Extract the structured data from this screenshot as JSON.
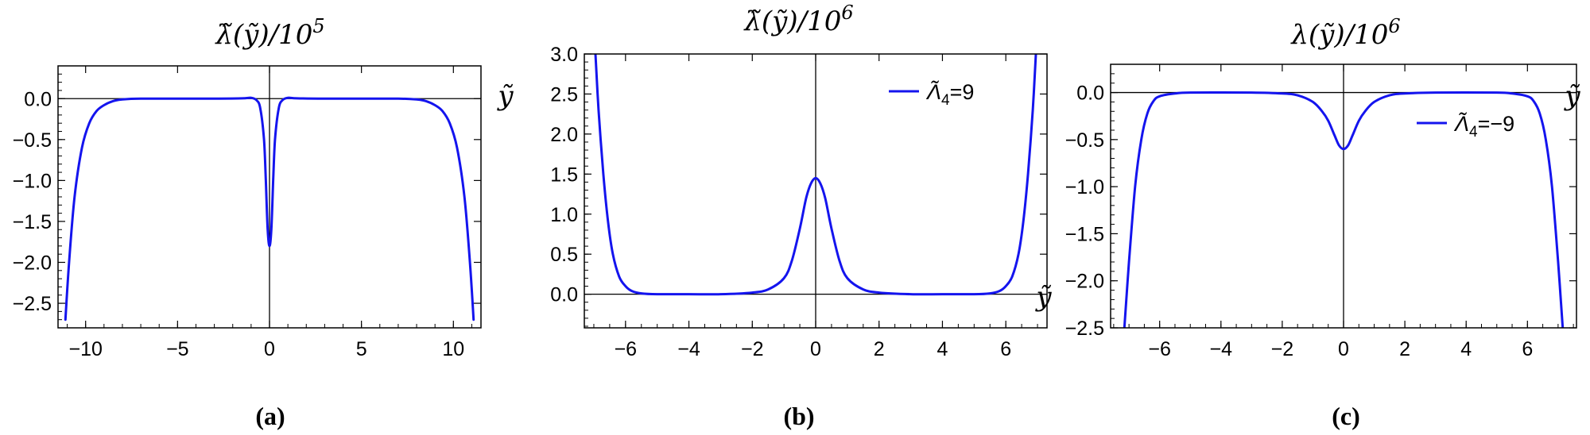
{
  "colors": {
    "curve": "#1414ee",
    "axis": "#000000"
  },
  "chart_data": [
    {
      "panel": "(a)",
      "type": "line",
      "title": "λ̃(ỹ)/10⁵",
      "title_parts": {
        "main": "λ̃(ỹ)/10",
        "sup": "5"
      },
      "xlabel": "",
      "ylabel": "",
      "axis_label": "ỹ",
      "xlim": [
        -11.5,
        11.5
      ],
      "ylim": [
        -2.8,
        0.4
      ],
      "xticks": [
        -10,
        -5,
        0,
        5,
        10
      ],
      "xtick_labels": [
        "−10",
        "−5",
        "0",
        "5",
        "10"
      ],
      "yticks": [
        0,
        -0.5,
        -1,
        -1.5,
        -2,
        -2.5
      ],
      "ytick_labels": [
        "0.0",
        "−0.5",
        "−1.0",
        "−1.5",
        "−2.0",
        "−2.5"
      ],
      "legend": "",
      "series": [
        {
          "x": [
            -11.1,
            -10.9,
            -10.6,
            -10.2,
            -9.8,
            -9.4,
            -9.0,
            -8.5,
            -8.0,
            -7.0,
            -5.0,
            -3.0,
            -1.5,
            -1.0,
            -0.7,
            -0.5,
            -0.3,
            -0.2,
            -0.1,
            0,
            0.1,
            0.2,
            0.3,
            0.5,
            0.7,
            1.0,
            1.5,
            3.0,
            5.0,
            7.0,
            8.0,
            8.5,
            9.0,
            9.4,
            9.8,
            10.2,
            10.6,
            10.9,
            11.1
          ],
          "y": [
            -2.7,
            -2.0,
            -1.2,
            -0.6,
            -0.3,
            -0.15,
            -0.08,
            -0.03,
            -0.01,
            0.0,
            0.0,
            0.0,
            0.003,
            0.01,
            -0.02,
            -0.12,
            -0.5,
            -1.0,
            -1.6,
            -1.8,
            -1.6,
            -1.0,
            -0.5,
            -0.12,
            -0.02,
            0.01,
            0.003,
            0.0,
            0.0,
            0.0,
            -0.01,
            -0.03,
            -0.08,
            -0.15,
            -0.3,
            -0.6,
            -1.2,
            -2.0,
            -2.7
          ]
        }
      ]
    },
    {
      "panel": "(b)",
      "type": "line",
      "title": "λ̃(ỹ)/10⁶",
      "title_parts": {
        "main": "λ̃(ỹ)/10",
        "sup": "6"
      },
      "xlabel": "",
      "ylabel": "",
      "axis_label": "ỹ",
      "xlim": [
        -7.3,
        7.3
      ],
      "ylim": [
        -0.42,
        3.0
      ],
      "xticks": [
        -6,
        -4,
        -2,
        0,
        2,
        4,
        6
      ],
      "xtick_labels": [
        "−6",
        "−4",
        "−2",
        "0",
        "2",
        "4",
        "6"
      ],
      "yticks": [
        0,
        0.5,
        1,
        1.5,
        2,
        2.5,
        3
      ],
      "ytick_labels": [
        "0.0",
        "0.5",
        "1.0",
        "1.5",
        "2.0",
        "2.5",
        "3.0"
      ],
      "legend": "Λ̃₄=9",
      "legend_parts": {
        "main": "Λ̃",
        "sub": "4",
        "rest": "=9"
      },
      "series": [
        {
          "name": "Λ̃₄=9",
          "x": [
            -6.95,
            -6.85,
            -6.7,
            -6.55,
            -6.4,
            -6.2,
            -6.0,
            -5.8,
            -5.5,
            -5.0,
            -4.0,
            -3.0,
            -2.0,
            -1.5,
            -1.0,
            -0.75,
            -0.5,
            -0.3,
            -0.15,
            0,
            0.15,
            0.3,
            0.5,
            0.75,
            1.0,
            1.5,
            2.0,
            3.0,
            4.0,
            5.0,
            5.5,
            5.8,
            6.0,
            6.2,
            6.4,
            6.55,
            6.7,
            6.85,
            6.95
          ],
          "y": [
            3.0,
            2.3,
            1.5,
            0.9,
            0.5,
            0.22,
            0.1,
            0.04,
            0.01,
            0.0,
            0.0,
            0.0,
            0.02,
            0.06,
            0.2,
            0.42,
            0.82,
            1.2,
            1.38,
            1.45,
            1.38,
            1.2,
            0.82,
            0.42,
            0.2,
            0.06,
            0.02,
            0.0,
            0.0,
            0.0,
            0.01,
            0.04,
            0.1,
            0.22,
            0.5,
            0.9,
            1.5,
            2.3,
            3.0
          ]
        }
      ]
    },
    {
      "panel": "(c)",
      "type": "line",
      "title": "λ(ỹ)/10⁶",
      "title_parts": {
        "main": "λ(ỹ)/10",
        "sup": "6"
      },
      "xlabel": "",
      "ylabel": "",
      "axis_label": "ỹ",
      "xlim": [
        -7.6,
        7.6
      ],
      "ylim": [
        -2.5,
        0.3
      ],
      "xticks": [
        -6,
        -4,
        -2,
        0,
        2,
        4,
        6
      ],
      "xtick_labels": [
        "−6",
        "−4",
        "−2",
        "0",
        "2",
        "4",
        "6"
      ],
      "yticks": [
        0,
        -0.5,
        -1,
        -1.5,
        -2,
        -2.5
      ],
      "ytick_labels": [
        "0.0",
        "−0.5",
        "−1.0",
        "−1.5",
        "−2.0",
        "−2.5"
      ],
      "legend": "Λ̃₄=−9",
      "legend_parts": {
        "main": "Λ̃",
        "sub": "4",
        "rest": "=−9"
      },
      "series": [
        {
          "name": "Λ̃₄=−9",
          "x": [
            -7.15,
            -7.0,
            -6.8,
            -6.6,
            -6.4,
            -6.2,
            -6.0,
            -5.5,
            -5.0,
            -3.0,
            -2.0,
            -1.5,
            -1.0,
            -0.7,
            -0.5,
            -0.3,
            -0.15,
            0,
            0.15,
            0.3,
            0.5,
            0.7,
            1.0,
            1.5,
            2.0,
            3.0,
            5.0,
            5.5,
            6.0,
            6.2,
            6.4,
            6.6,
            6.8,
            7.0,
            7.15
          ],
          "y": [
            -2.5,
            -1.8,
            -1.0,
            -0.5,
            -0.22,
            -0.09,
            -0.04,
            -0.01,
            0.0,
            0.0,
            -0.01,
            -0.03,
            -0.1,
            -0.2,
            -0.3,
            -0.45,
            -0.56,
            -0.6,
            -0.56,
            -0.45,
            -0.3,
            -0.2,
            -0.1,
            -0.03,
            -0.01,
            0.0,
            0.0,
            -0.01,
            -0.04,
            -0.09,
            -0.22,
            -0.5,
            -1.0,
            -1.8,
            -2.5
          ]
        }
      ]
    }
  ]
}
